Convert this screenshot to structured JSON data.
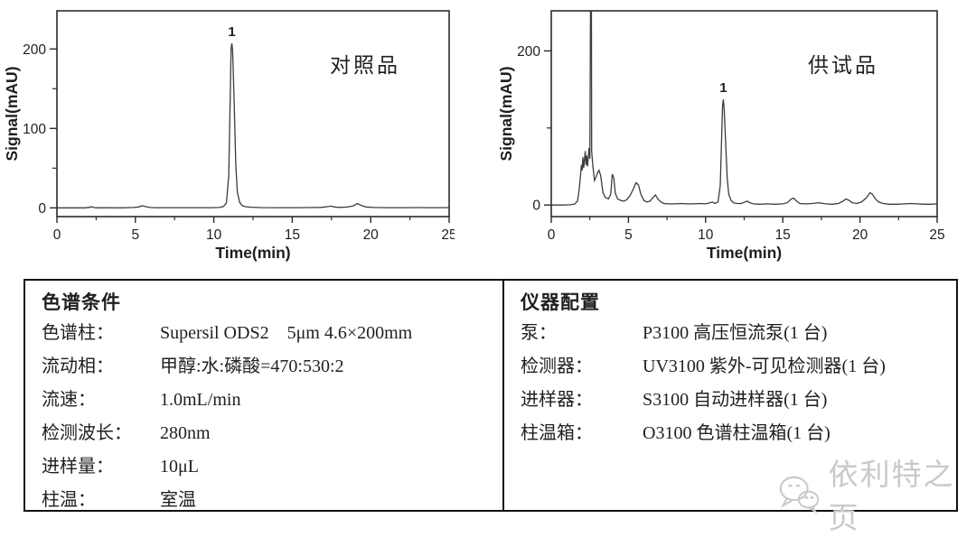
{
  "chart_data": [
    {
      "type": "line",
      "id": "reference",
      "title": "对照品",
      "xlabel": "Time(min)",
      "ylabel": "Signal(mAU)",
      "xlim": [
        0,
        25
      ],
      "ylim": [
        -11,
        248
      ],
      "x_ticks_major": [
        0,
        5,
        10,
        15,
        20,
        25
      ],
      "x_ticks_minor": [
        2.5,
        7.5,
        12.5,
        17.5,
        22.5
      ],
      "y_ticks_labeled": [
        0,
        100,
        200
      ],
      "y_ticks_minor": [
        50,
        150,
        250
      ],
      "grid": false,
      "peaks": [
        {
          "label": "1",
          "time": 11.15,
          "value": 207
        }
      ],
      "series": [
        {
          "name": "signal",
          "points": [
            [
              0,
              0
            ],
            [
              1,
              0
            ],
            [
              1.8,
              0
            ],
            [
              2.05,
              0.6
            ],
            [
              2.2,
              1.4
            ],
            [
              2.35,
              0.5
            ],
            [
              2.6,
              0
            ],
            [
              3.2,
              0.2
            ],
            [
              3.8,
              0
            ],
            [
              4.4,
              0.2
            ],
            [
              4.9,
              0.5
            ],
            [
              5.2,
              1.2
            ],
            [
              5.45,
              2.6
            ],
            [
              5.7,
              1.4
            ],
            [
              5.95,
              0.5
            ],
            [
              6.3,
              0.2
            ],
            [
              7,
              0.2
            ],
            [
              8,
              0.3
            ],
            [
              9,
              0.2
            ],
            [
              9.8,
              0.3
            ],
            [
              10.3,
              0.5
            ],
            [
              10.6,
              1.5
            ],
            [
              10.8,
              6
            ],
            [
              10.95,
              40
            ],
            [
              11.05,
              140
            ],
            [
              11.1,
              200
            ],
            [
              11.15,
              207
            ],
            [
              11.2,
              198
            ],
            [
              11.3,
              130
            ],
            [
              11.4,
              55
            ],
            [
              11.5,
              20
            ],
            [
              11.65,
              7
            ],
            [
              11.8,
              3
            ],
            [
              12,
              1.5
            ],
            [
              12.4,
              0.8
            ],
            [
              13,
              0.4
            ],
            [
              14,
              0.3
            ],
            [
              15,
              0.3
            ],
            [
              16,
              0.4
            ],
            [
              16.8,
              0.6
            ],
            [
              17.2,
              1.4
            ],
            [
              17.45,
              2.2
            ],
            [
              17.7,
              1.2
            ],
            [
              18,
              0.6
            ],
            [
              18.5,
              1
            ],
            [
              18.9,
              2.5
            ],
            [
              19.15,
              5.5
            ],
            [
              19.4,
              3
            ],
            [
              19.7,
              1.2
            ],
            [
              20.2,
              0.5
            ],
            [
              21,
              0.3
            ],
            [
              22,
              0.3
            ],
            [
              23,
              0.4
            ],
            [
              24,
              0.3
            ],
            [
              25,
              0.4
            ]
          ]
        }
      ]
    },
    {
      "type": "line",
      "id": "sample",
      "title": "供试品",
      "xlabel": "Time(min)",
      "ylabel": "Signal(mAU)",
      "xlim": [
        0,
        25
      ],
      "ylim": [
        -15,
        252
      ],
      "x_ticks_major": [
        0,
        5,
        10,
        15,
        20,
        25
      ],
      "x_ticks_minor": [
        2.5,
        7.5,
        12.5,
        17.5,
        22.5
      ],
      "y_ticks_labeled": [
        0,
        200
      ],
      "y_ticks_minor": [
        100
      ],
      "grid": false,
      "peaks": [
        {
          "label": "1",
          "time": 11.15,
          "value": 137
        }
      ],
      "series": [
        {
          "name": "signal",
          "points": [
            [
              0,
              0
            ],
            [
              0.6,
              0
            ],
            [
              1.2,
              0.3
            ],
            [
              1.5,
              1
            ],
            [
              1.7,
              5
            ],
            [
              1.8,
              18
            ],
            [
              1.9,
              40
            ],
            [
              1.95,
              52
            ],
            [
              2.0,
              45
            ],
            [
              2.05,
              62
            ],
            [
              2.1,
              48
            ],
            [
              2.2,
              70
            ],
            [
              2.25,
              52
            ],
            [
              2.3,
              64
            ],
            [
              2.35,
              50
            ],
            [
              2.45,
              74
            ],
            [
              2.5,
              60
            ],
            [
              2.55,
              300
            ],
            [
              2.6,
              300
            ],
            [
              2.62,
              70
            ],
            [
              2.7,
              50
            ],
            [
              2.8,
              32
            ],
            [
              2.9,
              36
            ],
            [
              3.0,
              42
            ],
            [
              3.1,
              45
            ],
            [
              3.2,
              38
            ],
            [
              3.35,
              16
            ],
            [
              3.5,
              10
            ],
            [
              3.7,
              8
            ],
            [
              3.85,
              14
            ],
            [
              3.95,
              40
            ],
            [
              4.05,
              35
            ],
            [
              4.15,
              15
            ],
            [
              4.3,
              8
            ],
            [
              4.5,
              6
            ],
            [
              4.7,
              5
            ],
            [
              4.9,
              7
            ],
            [
              5.1,
              12
            ],
            [
              5.3,
              20
            ],
            [
              5.5,
              29
            ],
            [
              5.65,
              26
            ],
            [
              5.8,
              14
            ],
            [
              6.0,
              6
            ],
            [
              6.2,
              4
            ],
            [
              6.4,
              5
            ],
            [
              6.6,
              10
            ],
            [
              6.75,
              13
            ],
            [
              6.9,
              8
            ],
            [
              7.1,
              4
            ],
            [
              7.3,
              2
            ],
            [
              7.6,
              1.5
            ],
            [
              8.0,
              1.5
            ],
            [
              8.4,
              2
            ],
            [
              8.8,
              1.5
            ],
            [
              9.2,
              1.5
            ],
            [
              9.6,
              2
            ],
            [
              10.0,
              1.5
            ],
            [
              10.3,
              3
            ],
            [
              10.45,
              4
            ],
            [
              10.6,
              2
            ],
            [
              10.8,
              4
            ],
            [
              10.95,
              25
            ],
            [
              11.05,
              95
            ],
            [
              11.1,
              130
            ],
            [
              11.15,
              137
            ],
            [
              11.2,
              125
            ],
            [
              11.3,
              80
            ],
            [
              11.4,
              35
            ],
            [
              11.5,
              14
            ],
            [
              11.65,
              6
            ],
            [
              11.8,
              3
            ],
            [
              12.0,
              2
            ],
            [
              12.3,
              2
            ],
            [
              12.55,
              4
            ],
            [
              12.7,
              5
            ],
            [
              12.85,
              3
            ],
            [
              13.1,
              1.5
            ],
            [
              13.5,
              1
            ],
            [
              14.0,
              1.5
            ],
            [
              14.5,
              1
            ],
            [
              15.0,
              1.5
            ],
            [
              15.3,
              3
            ],
            [
              15.55,
              8
            ],
            [
              15.7,
              9
            ],
            [
              15.9,
              5
            ],
            [
              16.1,
              2
            ],
            [
              16.5,
              1.5
            ],
            [
              16.9,
              2
            ],
            [
              17.3,
              3
            ],
            [
              17.5,
              2.5
            ],
            [
              17.8,
              1.5
            ],
            [
              18.2,
              1
            ],
            [
              18.6,
              2
            ],
            [
              18.9,
              5
            ],
            [
              19.1,
              8
            ],
            [
              19.3,
              6
            ],
            [
              19.5,
              3
            ],
            [
              19.8,
              2
            ],
            [
              20.1,
              4
            ],
            [
              20.4,
              9
            ],
            [
              20.65,
              16
            ],
            [
              20.8,
              14
            ],
            [
              21.0,
              8
            ],
            [
              21.2,
              4
            ],
            [
              21.5,
              2
            ],
            [
              21.9,
              1
            ],
            [
              22.4,
              1
            ],
            [
              22.9,
              1.5
            ],
            [
              23.3,
              2
            ],
            [
              23.7,
              1.5
            ],
            [
              24.2,
              1
            ],
            [
              24.6,
              1
            ],
            [
              25,
              1.5
            ]
          ]
        }
      ]
    }
  ],
  "table": {
    "left": {
      "header": "色谱条件",
      "rows": [
        {
          "label": "色谱柱：",
          "value": "Supersil ODS2    5μm 4.6×200mm"
        },
        {
          "label": "流动相：",
          "value": "甲醇:水:磷酸=470:530:2"
        },
        {
          "label": "流速：",
          "value": "1.0mL/min"
        },
        {
          "label": "检测波长：",
          "value": "280nm"
        },
        {
          "label": "进样量：",
          "value": "10μL"
        },
        {
          "label": "柱温：",
          "value": "室温"
        }
      ]
    },
    "right": {
      "header": "仪器配置",
      "rows": [
        {
          "label": "泵：",
          "value": "P3100 高压恒流泵(1 台)"
        },
        {
          "label": "检测器：",
          "value": "UV3100 紫外-可见检测器(1 台)"
        },
        {
          "label": "进样器：",
          "value": "S3100 自动进样器(1 台)"
        },
        {
          "label": "柱温箱：",
          "value": "O3100 色谱柱温箱(1 台)"
        }
      ]
    }
  },
  "watermark": {
    "icon": "wechat-icon",
    "text": "依利特之页",
    "color": "#c9c9c9"
  },
  "colors": {
    "trace": "#3c3c3c",
    "axis": "#2b2b2b",
    "text": "#1f1f1f"
  }
}
